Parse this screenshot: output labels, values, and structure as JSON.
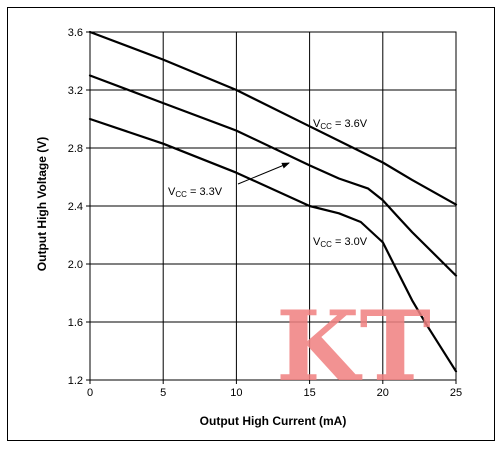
{
  "chart_data": {
    "type": "line",
    "xlabel": "Output High Current (mA)",
    "ylabel": "Output High Voltage (V)",
    "xlim": [
      0,
      25
    ],
    "ylim": [
      1.2,
      3.6
    ],
    "xticks": [
      "0",
      "5",
      "10",
      "15",
      "20",
      "25"
    ],
    "yticks": [
      "1.2",
      "1.6",
      "2.0",
      "2.4",
      "2.8",
      "3.2",
      "3.6"
    ],
    "grid": true,
    "series": [
      {
        "name": "VCC = 3.6V",
        "label_main": "V",
        "label_sub": "CC",
        "label_rest": " = 3.6V",
        "x": [
          0,
          5,
          10,
          15,
          18,
          20,
          22,
          25
        ],
        "y": [
          3.6,
          3.41,
          3.2,
          2.95,
          2.8,
          2.7,
          2.58,
          2.41
        ]
      },
      {
        "name": "VCC = 3.3V",
        "label_main": "V",
        "label_sub": "CC",
        "label_rest": " = 3.3V",
        "x": [
          0,
          5,
          10,
          15,
          17,
          19,
          20,
          21,
          22,
          25
        ],
        "y": [
          3.3,
          3.11,
          2.92,
          2.68,
          2.59,
          2.52,
          2.44,
          2.33,
          2.22,
          1.92
        ]
      },
      {
        "name": "VCC = 3.0V",
        "label_main": "V",
        "label_sub": "CC",
        "label_rest": " = 3.0V",
        "x": [
          0,
          5,
          10,
          15,
          17,
          18.5,
          20,
          21,
          22,
          23,
          25
        ],
        "y": [
          3.0,
          2.83,
          2.63,
          2.4,
          2.35,
          2.29,
          2.15,
          1.95,
          1.75,
          1.58,
          1.26
        ]
      }
    ],
    "watermark": "KT"
  }
}
